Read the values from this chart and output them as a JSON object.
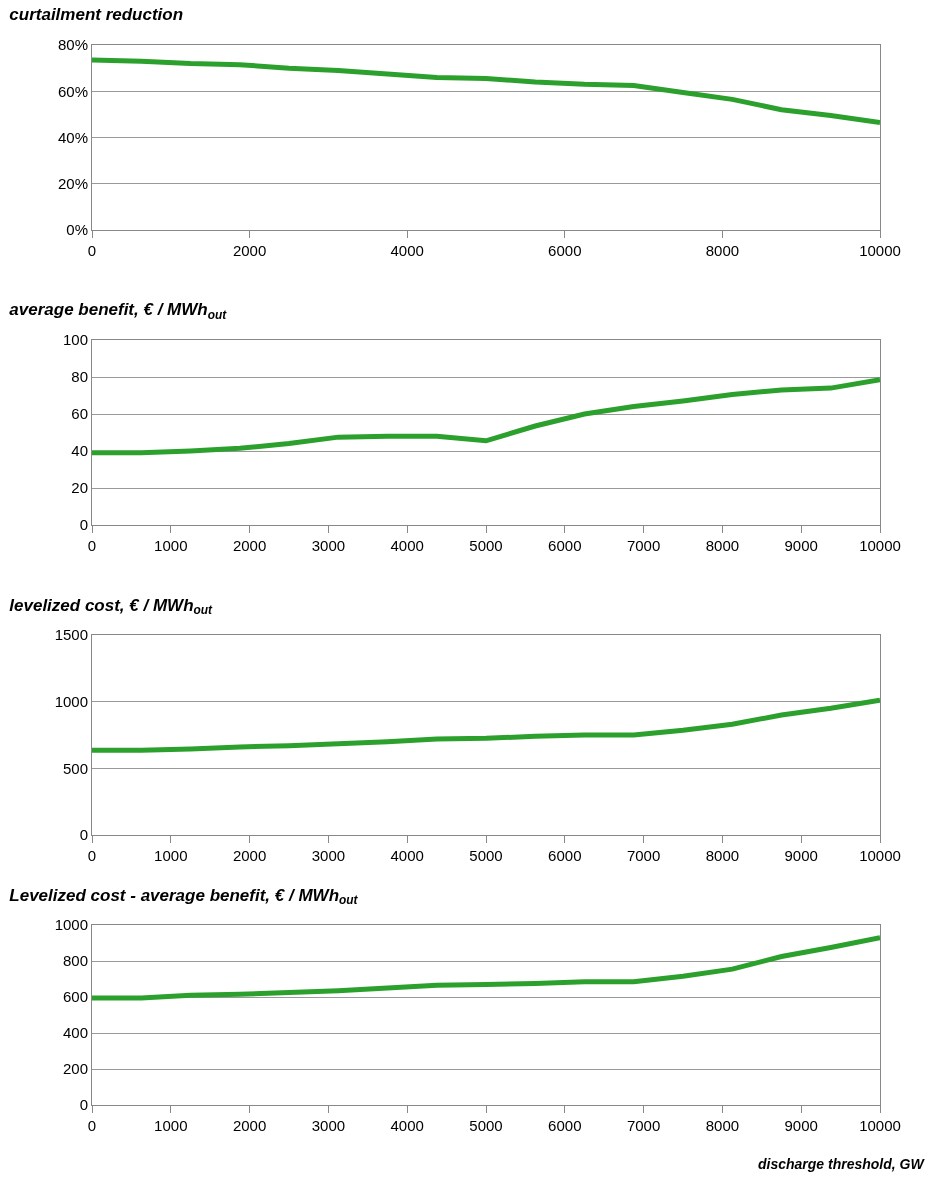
{
  "chart_data": [
    {
      "type": "line",
      "title": "curtailment reduction",
      "x": [
        0,
        625,
        1250,
        1875,
        2500,
        3125,
        3750,
        4375,
        5000,
        5625,
        6250,
        6875,
        7500,
        8125,
        8750,
        9375,
        10000
      ],
      "series": [
        {
          "color": "#2ca02c",
          "values": [
            73.5,
            73,
            72,
            71.5,
            70,
            69,
            67.5,
            66,
            65.5,
            64,
            63,
            62.5,
            59.5,
            56.5,
            52,
            49.5,
            46.5
          ]
        }
      ],
      "xlim": [
        0,
        10000
      ],
      "xticks": [
        0,
        2000,
        4000,
        6000,
        8000,
        10000
      ],
      "ylim": [
        0,
        80
      ],
      "yticks": [
        {
          "value": 0,
          "label": "0%"
        },
        {
          "value": 20,
          "label": "20%"
        },
        {
          "value": 40,
          "label": "40%"
        },
        {
          "value": 60,
          "label": "60%"
        },
        {
          "value": 80,
          "label": "80%"
        }
      ],
      "grid": "y"
    },
    {
      "type": "line",
      "title": "average benefit, € / MWh$_{out}$",
      "x": [
        0,
        625,
        1250,
        1875,
        2500,
        3125,
        3750,
        4375,
        5000,
        5625,
        6250,
        6875,
        7500,
        8125,
        8750,
        9375,
        10000
      ],
      "series": [
        {
          "color": "#2ca02c",
          "values": [
            39,
            39,
            40,
            41.5,
            44,
            47.5,
            48,
            48,
            45.5,
            53.5,
            60,
            64,
            67,
            70.5,
            73,
            74,
            78.5
          ]
        }
      ],
      "xlim": [
        0,
        10000
      ],
      "xticks": [
        0,
        1000,
        2000,
        3000,
        4000,
        5000,
        6000,
        7000,
        8000,
        9000,
        10000
      ],
      "ylim": [
        0,
        100
      ],
      "yticks": [
        0,
        20,
        40,
        60,
        80,
        100
      ],
      "grid": "y"
    },
    {
      "type": "line",
      "title": "levelized cost, € / MWh$_{out}$",
      "x": [
        0,
        625,
        1250,
        1875,
        2500,
        3125,
        3750,
        4375,
        5000,
        5625,
        6250,
        6875,
        7500,
        8125,
        8750,
        9375,
        10000
      ],
      "series": [
        {
          "color": "#2ca02c",
          "values": [
            635,
            635,
            645,
            660,
            670,
            685,
            700,
            720,
            725,
            740,
            750,
            750,
            785,
            830,
            900,
            950,
            1010
          ]
        }
      ],
      "xlim": [
        0,
        10000
      ],
      "xticks": [
        0,
        1000,
        2000,
        3000,
        4000,
        5000,
        6000,
        7000,
        8000,
        9000,
        10000
      ],
      "ylim": [
        0,
        1500
      ],
      "yticks": [
        0,
        500,
        1000,
        1500
      ],
      "grid": "y"
    },
    {
      "type": "line",
      "title": "Levelized cost - average benefit, € / MWh$_{out}$",
      "xlabel": "discharge threshold, GW",
      "x": [
        0,
        625,
        1250,
        1875,
        2500,
        3125,
        3750,
        4375,
        5000,
        5625,
        6250,
        6875,
        7500,
        8125,
        8750,
        9375,
        10000
      ],
      "series": [
        {
          "color": "#2ca02c",
          "values": [
            595,
            595,
            610,
            615,
            625,
            635,
            650,
            665,
            670,
            675,
            685,
            685,
            715,
            755,
            825,
            875,
            930
          ]
        }
      ],
      "xlim": [
        0,
        10000
      ],
      "xticks": [
        0,
        1000,
        2000,
        3000,
        4000,
        5000,
        6000,
        7000,
        8000,
        9000,
        10000
      ],
      "ylim": [
        0,
        1000
      ],
      "yticks": [
        0,
        200,
        400,
        600,
        800,
        1000
      ],
      "grid": "y"
    }
  ]
}
